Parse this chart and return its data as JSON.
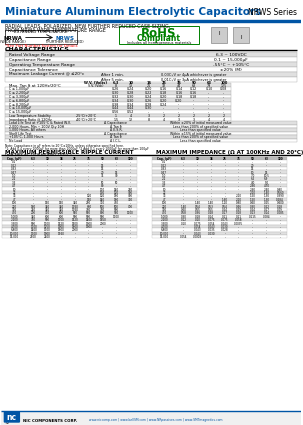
{
  "title": "Miniature Aluminum Electrolytic Capacitors",
  "series": "NRWS Series",
  "subtitle1": "RADIAL LEADS, POLARIZED, NEW FURTHER REDUCED CASE SIZING,",
  "subtitle2": "FROM NRWA WIDE TEMPERATURE RANGE",
  "rohs_text": "RoHS\nCompliant",
  "rohs_sub": "Includes all homogeneous materials",
  "rohs_sub2": "*See Part Number System for Details",
  "ext_temp_label": "EXTENDED TEMPERATURE",
  "nrwa_label": "NRWA",
  "nrws_label": "NRWS",
  "nrwa_sub": "(WIDE RANGE)",
  "nrws_sub": "(FURTHER REDUCED)",
  "char_title": "CHARACTERISTICS",
  "char_rows": [
    [
      "Rated Voltage Range",
      "",
      "6.3 ~ 100VDC"
    ],
    [
      "Capacitance Range",
      "",
      "0.1 ~ 15,000μF"
    ],
    [
      "Operating Temperature Range",
      "",
      "-55°C ~ +105°C"
    ],
    [
      "Capacitance Tolerance",
      "",
      "±20% (M)"
    ]
  ],
  "leakage_label": "Maximum Leakage Current @ ≤20°c",
  "leakage_after1": "After 1 min.",
  "leakage_after2": "After 5 min.",
  "leakage_val1": "0.03C√V or 4μA whichever is greater",
  "leakage_val2": "0.01C√V or 3μA whichever is greater",
  "tand_label": "Max. Tan δ at 120Hz/20°C",
  "tand_headers": [
    "W.V. (Volts)",
    "6.3",
    "10",
    "16",
    "25",
    "35",
    "50",
    "63",
    "100"
  ],
  "tand_sv_row": [
    "S.V. (Vdc)",
    "8",
    "13",
    "21",
    "32",
    "44",
    "63",
    "79",
    "125"
  ],
  "tand_rows": [
    [
      "C ≤ 1,000μF",
      "0.26",
      "0.24",
      "0.20",
      "0.16",
      "0.14",
      "0.12",
      "0.10",
      "0.08"
    ],
    [
      "C ≤ 2,200μF",
      "0.30",
      "0.28",
      "0.22",
      "0.18",
      "0.16",
      "0.16",
      "",
      ""
    ],
    [
      "C ≤ 3,300μF",
      "0.32",
      "0.30",
      "0.24",
      "0.20",
      "0.18",
      "0.18",
      "",
      ""
    ],
    [
      "C ≤ 6,800μF",
      "0.34",
      "0.30",
      "0.26",
      "0.20",
      "0.20",
      "",
      "",
      ""
    ],
    [
      "C ≤ 8,200μF",
      "0.38",
      "0.34",
      "0.28",
      "0.24",
      "",
      "",
      "",
      ""
    ],
    [
      "C ≤ 10,000μF",
      "0.44",
      "0.44",
      "0.30",
      "",
      "",
      "",
      "",
      ""
    ],
    [
      "C ≤ 15,000μF",
      "0.56",
      "0.52",
      "",
      "",
      "",
      "",
      "",
      ""
    ]
  ],
  "low_temp_rows": [
    [
      "Low Temperature Stability",
      "-25°C/+20°C",
      "1",
      "4",
      "3",
      "2",
      "2",
      "2",
      "2",
      "2"
    ],
    [
      "Impedance Ratio @ 120Hz",
      "-40°C/+20°C",
      "1.5",
      "12",
      "8",
      "4",
      "3",
      "3",
      "4",
      "4"
    ]
  ],
  "life_rows": [
    [
      "Load Life Test at +105°C & Rated W.V.",
      "Δ Capacitance",
      "Within ±20% of initial measured value"
    ],
    [
      "2,000 Hours, Min ~ 100V Qty 10H",
      "Δ Tan δ",
      "Less than 200% of specified value"
    ],
    [
      "1,000 Hours, All others",
      "Δ E.S.R.",
      "Less than specified value"
    ]
  ],
  "shelf_rows": [
    [
      "Shelf Life Test",
      "Δ Capacitance",
      "Within ±15% of initial measured value"
    ],
    [
      "+105°C, 1,000 Hours",
      "Δ Tan δ",
      "Less than 200% of specified value"
    ],
    [
      "No Load",
      "Δ I.C.L.",
      "Less than specified value"
    ]
  ],
  "note1": "Note: Capacitance in μF refers to 20°C±10Hz, unless otherwise specified here.",
  "note2": "*1: Add 0.4 every 1000μF for more than 1000μF *2 Add 0.1 every 1000μF for more than 100μF",
  "ripple_title": "MAXIMUM PERMISSIBLE RIPPLE CURRENT",
  "ripple_sub": "(mA rms AT 100KHz AND 105°C)",
  "imp_title": "MAXIMUM IMPEDANCE (Ω AT 100KHz AND 20°C)",
  "table_headers": [
    "Cap. (μF)",
    "6.3",
    "10",
    "16",
    "25",
    "35",
    "50",
    "63",
    "100"
  ],
  "ripple_data": [
    [
      "0.1",
      "-",
      "-",
      "-",
      "-",
      "-",
      "-",
      "-",
      "-"
    ],
    [
      "0.22",
      "-",
      "-",
      "-",
      "-",
      "-",
      "15",
      "-",
      "-"
    ],
    [
      "0.33",
      "-",
      "-",
      "-",
      "-",
      "-",
      "15",
      "-",
      "-"
    ],
    [
      "0.47",
      "-",
      "-",
      "-",
      "-",
      "-",
      "20",
      "15",
      "-"
    ],
    [
      "1.0",
      "-",
      "-",
      "-",
      "-",
      "-",
      "35",
      "30",
      "-"
    ],
    [
      "2.2",
      "-",
      "-",
      "-",
      "-",
      "-",
      "-",
      "-",
      "-"
    ],
    [
      "3.3",
      "-",
      "-",
      "-",
      "-",
      "-",
      "50",
      "50",
      "-"
    ],
    [
      "4.7",
      "-",
      "-",
      "-",
      "-",
      "-",
      "80",
      "-",
      "-"
    ],
    [
      "10",
      "-",
      "-",
      "-",
      "-",
      "-",
      "110",
      "140",
      "230"
    ],
    [
      "22",
      "-",
      "-",
      "-",
      "-",
      "-",
      "130",
      "120",
      "300"
    ],
    [
      "33",
      "-",
      "-",
      "-",
      "-",
      "120",
      "120",
      "180",
      "300"
    ],
    [
      "47",
      "-",
      "-",
      "-",
      "-",
      "150",
      "140",
      "180",
      "330"
    ],
    [
      "100",
      "-",
      "150",
      "150",
      "340",
      "280",
      "310",
      "450",
      "-"
    ],
    [
      "220",
      "160",
      "340",
      "340",
      "1760",
      "660",
      "500",
      "500",
      "700"
    ],
    [
      "330",
      "240",
      "340",
      "340",
      "1760",
      "760",
      "760",
      "900",
      "-"
    ],
    [
      "470",
      "200",
      "370",
      "600",
      "560",
      "590",
      "800",
      "960",
      "1100"
    ],
    [
      "1,000",
      "340",
      "600",
      "600",
      "900",
      "900",
      "900",
      "1100",
      "-"
    ],
    [
      "2,200",
      "750",
      "900",
      "1700",
      "1520",
      "1400",
      "1650",
      "-",
      "-"
    ],
    [
      "3,300",
      "900",
      "1100",
      "1520",
      "1500",
      "1900",
      "2000",
      "-",
      "-"
    ],
    [
      "4,700",
      "1100",
      "1250",
      "1900",
      "1800",
      "1900",
      "-",
      "-",
      "-"
    ],
    [
      "6,800",
      "1400",
      "1700",
      "1800",
      "2000",
      "-",
      "-",
      "-",
      "-"
    ],
    [
      "10,000",
      "1700",
      "1900",
      "1960",
      "-",
      "-",
      "-",
      "-",
      "-"
    ],
    [
      "15,000",
      "2100",
      "2400",
      "-",
      "-",
      "-",
      "-",
      "-",
      "-"
    ]
  ],
  "imp_data": [
    [
      "0.1",
      "-",
      "-",
      "-",
      "-",
      "-",
      "-",
      "-",
      "-"
    ],
    [
      "0.22",
      "-",
      "-",
      "-",
      "-",
      "-",
      "20",
      "-",
      "-"
    ],
    [
      "0.33",
      "-",
      "-",
      "-",
      "-",
      "-",
      "15",
      "-",
      "-"
    ],
    [
      "0.47",
      "-",
      "-",
      "-",
      "-",
      "-",
      "10",
      "15",
      "-"
    ],
    [
      "1.0",
      "-",
      "-",
      "-",
      "-",
      "-",
      "7.0",
      "10.5",
      "-"
    ],
    [
      "2.2",
      "-",
      "-",
      "-",
      "-",
      "-",
      "6.5",
      "6.9",
      "-"
    ],
    [
      "3.3",
      "-",
      "-",
      "-",
      "-",
      "-",
      "4.0",
      "5.0",
      "-"
    ],
    [
      "4.7",
      "-",
      "-",
      "-",
      "-",
      "-",
      "2.90",
      "4.70",
      "-"
    ],
    [
      "10",
      "-",
      "-",
      "-",
      "-",
      "-",
      "2.60",
      "2.40",
      "0.80"
    ],
    [
      "22",
      "-",
      "-",
      "-",
      "-",
      "-",
      "2.10",
      "1.40",
      "0.560"
    ],
    [
      "33",
      "-",
      "-",
      "-",
      "-",
      "2.10",
      "1.50",
      "1.30",
      "0.390"
    ],
    [
      "47",
      "-",
      "-",
      "-",
      "1.60",
      "2.10",
      "1.50",
      "1.30",
      "0.284"
    ],
    [
      "100",
      "-",
      "1.40",
      "1.40",
      "1.10",
      "0.80",
      "0.60",
      "0.25",
      "0.600"
    ],
    [
      "220",
      "1.40",
      "0.54",
      "0.53",
      "0.54",
      "0.46",
      "0.30",
      "0.22",
      "0.18"
    ],
    [
      "330",
      "0.60",
      "0.55",
      "0.55",
      "0.24",
      "0.29",
      "0.24",
      "0.17",
      "0.09"
    ],
    [
      "470",
      "0.58",
      "0.36",
      "0.28",
      "0.17",
      "0.18",
      "0.13",
      "0.14",
      "0.085"
    ],
    [
      "1,000",
      "0.30",
      "0.18",
      "0.14",
      "0.11",
      "0.11",
      "0.115",
      "0.084",
      "-"
    ],
    [
      "2,200",
      "0.12",
      "0.10",
      "0.075",
      "0.075",
      "0.058",
      "-",
      "-",
      "-"
    ],
    [
      "3,300",
      "0.10",
      "0.075",
      "0.054",
      "0.043",
      "0.0035",
      "-",
      "-",
      "-"
    ],
    [
      "4,700",
      "-",
      "0.054",
      "0.043",
      "0.030",
      "-",
      "-",
      "-",
      "-"
    ],
    [
      "6,800",
      "-",
      "0.043",
      "0.035",
      "0.028",
      "-",
      "-",
      "-",
      "-"
    ],
    [
      "10,000",
      "-",
      "0.043",
      "0.030",
      "-",
      "-",
      "-",
      "-",
      "-"
    ],
    [
      "15,000",
      "0.054",
      "0.0008",
      "-",
      "-",
      "-",
      "-",
      "-",
      "-"
    ]
  ],
  "footer_page": "72",
  "footer_urls": "www.niccomp.com | www.bellSM.com | www.NRpassives.com | www.SMTmagnetics.com",
  "bg_color": "#ffffff",
  "header_blue": "#0055a5",
  "table_header_bg": "#cccccc",
  "alt_row_bg": "#f0f0f0"
}
